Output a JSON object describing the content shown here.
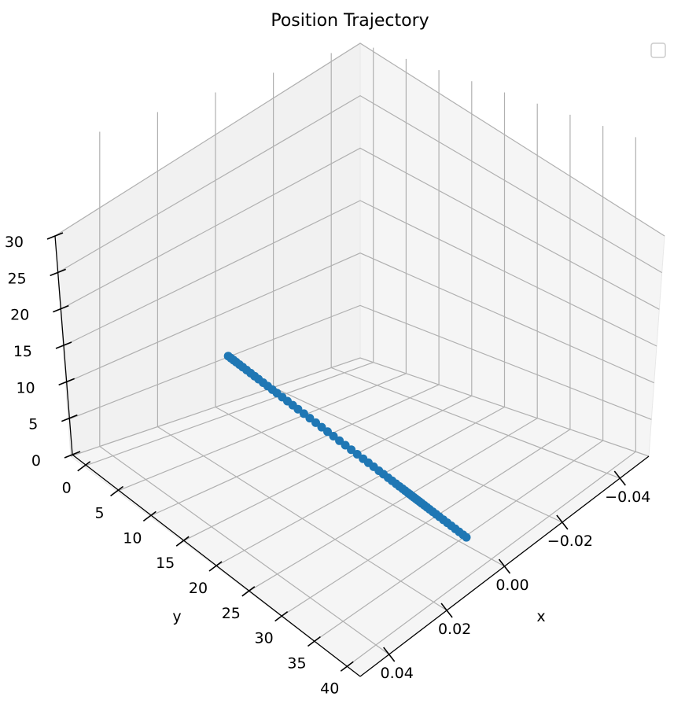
{
  "chart_data": {
    "type": "scatter",
    "projection": "3d",
    "title": "Position Trajectory",
    "xlabel": "x",
    "ylabel": "y",
    "zlabel": "",
    "xlim": [
      -0.05,
      0.05
    ],
    "ylim": [
      -2,
      42
    ],
    "zlim": [
      0,
      30
    ],
    "x_ticks": [
      "−0.04",
      "−0.02",
      "0.00",
      "0.02",
      "0.04"
    ],
    "x_tick_values": [
      -0.04,
      -0.02,
      0.0,
      0.02,
      0.04
    ],
    "y_ticks": [
      "0",
      "5",
      "10",
      "15",
      "20",
      "25",
      "30",
      "35",
      "40"
    ],
    "y_tick_values": [
      0,
      5,
      10,
      15,
      20,
      25,
      30,
      35,
      40
    ],
    "z_ticks": [
      "0",
      "5",
      "10",
      "15",
      "20",
      "25",
      "30"
    ],
    "z_tick_values": [
      0,
      5,
      10,
      15,
      20,
      25,
      30
    ],
    "grid": true,
    "legend": {
      "placement": "top-right",
      "entries": []
    },
    "series": [
      {
        "color": "#1f77b4",
        "marker": "circle",
        "points": [
          [
            0.0,
            0.0,
            0.0
          ],
          [
            0.0,
            0.4,
            0.0
          ],
          [
            0.0,
            0.8,
            0.0
          ],
          [
            0.0,
            1.2,
            0.0
          ],
          [
            0.0,
            1.7,
            0.0
          ],
          [
            0.0,
            2.2,
            0.0
          ],
          [
            0.0,
            2.8,
            0.0
          ],
          [
            0.0,
            3.4,
            0.0
          ],
          [
            0.0,
            4.0,
            0.0
          ],
          [
            0.0,
            4.6,
            0.0
          ],
          [
            0.0,
            5.3,
            0.0
          ],
          [
            0.0,
            6.0,
            0.0
          ],
          [
            0.0,
            6.7,
            0.0
          ],
          [
            0.0,
            7.4,
            0.0
          ],
          [
            0.0,
            8.2,
            0.0
          ],
          [
            0.0,
            9.0,
            0.0
          ],
          [
            0.0,
            9.8,
            0.0
          ],
          [
            0.0,
            10.6,
            0.0
          ],
          [
            0.0,
            11.5,
            0.0
          ],
          [
            0.0,
            12.4,
            0.0
          ],
          [
            0.0,
            13.3,
            0.0
          ],
          [
            0.0,
            14.2,
            0.0
          ],
          [
            0.0,
            15.1,
            0.0
          ],
          [
            0.0,
            16.0,
            0.0
          ],
          [
            0.0,
            16.9,
            0.0
          ],
          [
            0.0,
            17.8,
            0.0
          ],
          [
            0.0,
            18.7,
            0.0
          ],
          [
            0.0,
            19.6,
            0.0
          ],
          [
            0.0,
            20.5,
            0.0
          ],
          [
            0.0,
            21.3,
            0.0
          ],
          [
            0.0,
            22.1,
            0.0
          ],
          [
            0.0,
            22.9,
            0.0
          ],
          [
            0.0,
            23.6,
            0.0
          ],
          [
            0.0,
            24.3,
            0.0
          ],
          [
            0.0,
            24.9,
            0.0
          ],
          [
            0.0,
            25.5,
            0.0
          ],
          [
            0.0,
            26.0,
            0.0
          ],
          [
            0.0,
            26.5,
            0.0
          ],
          [
            0.0,
            26.9,
            0.0
          ],
          [
            0.0,
            27.3,
            0.0
          ],
          [
            0.0,
            27.6,
            0.0
          ],
          [
            0.0,
            27.9,
            0.0
          ],
          [
            0.0,
            28.2,
            0.0
          ],
          [
            0.0,
            28.5,
            0.0
          ],
          [
            0.0,
            28.8,
            0.0
          ],
          [
            0.0,
            29.1,
            0.0
          ],
          [
            0.0,
            29.4,
            0.0
          ],
          [
            0.0,
            29.8,
            0.0
          ],
          [
            0.0,
            30.2,
            0.0
          ],
          [
            0.0,
            30.6,
            0.0
          ],
          [
            0.0,
            31.1,
            0.0
          ],
          [
            0.0,
            31.6,
            0.0
          ],
          [
            0.0,
            32.1,
            0.0
          ],
          [
            0.0,
            32.7,
            0.0
          ],
          [
            0.0,
            33.3,
            0.0
          ],
          [
            0.0,
            33.9,
            0.0
          ],
          [
            0.0,
            34.5,
            0.0
          ],
          [
            0.0,
            35.1,
            0.0
          ],
          [
            0.0,
            35.7,
            0.0
          ],
          [
            0.0,
            36.2,
            0.0
          ]
        ]
      }
    ]
  }
}
